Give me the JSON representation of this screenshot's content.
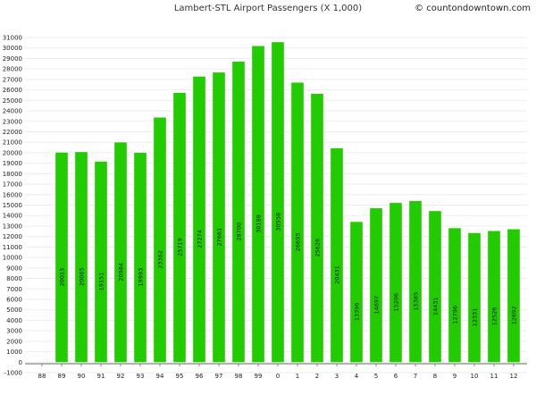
{
  "chart_data": {
    "type": "bar",
    "title": "Lambert-STL Airport Passengers (X 1,000)",
    "credit": "© countondowntown.com",
    "categories": [
      "88",
      "89",
      "90",
      "91",
      "92",
      "93",
      "94",
      "95",
      "96",
      "97",
      "98",
      "99",
      "0",
      "1",
      "2",
      "3",
      "4",
      "5",
      "6",
      "7",
      "8",
      "9",
      "10",
      "11",
      "12"
    ],
    "values": [
      null,
      20015,
      20065,
      19151,
      20984,
      19993,
      23362,
      25719,
      27274,
      27661,
      28700,
      30188,
      30558,
      26695,
      25626,
      20431,
      13396,
      14697,
      15206,
      15385,
      14431,
      12796,
      12331,
      12526,
      12692
    ],
    "ylim": [
      -1000,
      31000
    ],
    "ytick_step": 1000,
    "bar_color": "#22cc00",
    "grid": true,
    "xlabel": "",
    "ylabel": ""
  }
}
